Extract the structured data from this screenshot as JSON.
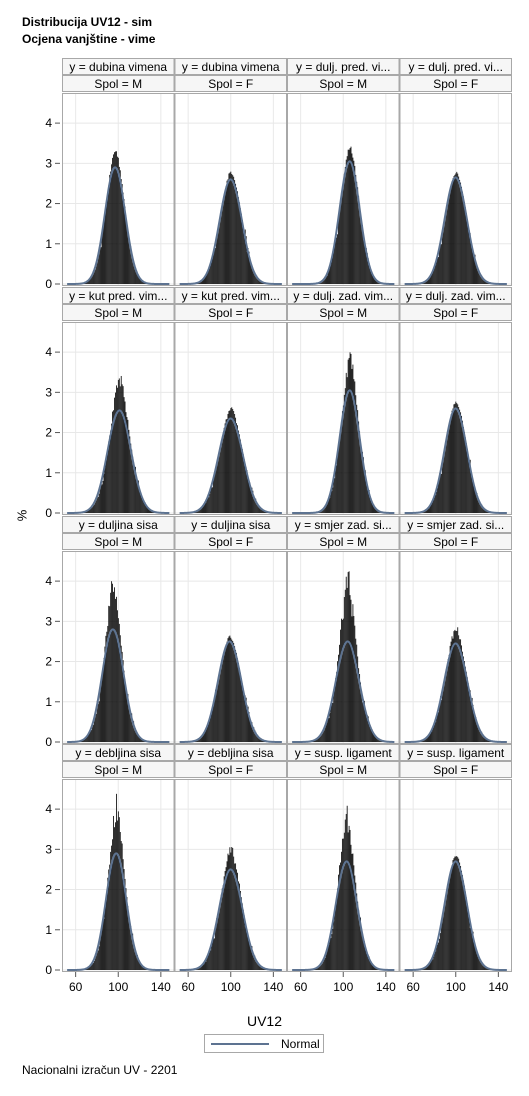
{
  "titles": {
    "line1": "Distribucija UV12 - sim",
    "line2": "Ocjena vanjštine - vime"
  },
  "footnote": "Nacionalni izračun UV - 2201",
  "chart_data": {
    "type": "histogram-panel",
    "xlabel": "UV12",
    "ylabel": "%",
    "xlim": [
      50,
      150
    ],
    "ylim": [
      0,
      4.5
    ],
    "x_ticks": [
      60,
      100,
      140
    ],
    "y_ticks": [
      0,
      1,
      2,
      3,
      4
    ],
    "grid": true,
    "legend": {
      "position": "bottom-center",
      "entries": [
        "Normal"
      ]
    },
    "colors": {
      "bars": "#000000",
      "normal_curve": "#5d7391",
      "header_bg": "#f6f6f6",
      "frame": "#a8a8a8",
      "grid": "#e8e8e8"
    },
    "columns": [
      "Spol = M",
      "Spol = F",
      "Spol = M",
      "Spol = F"
    ],
    "rows": [
      {
        "headers": [
          "y = dubina vimena",
          "y = dubina vimena",
          "y = dulj. pred. vi...",
          "y = dulj. pred. vi..."
        ],
        "panels": [
          {
            "spol": "M",
            "mean": 97,
            "sd": 9.5,
            "normal_peak": 2.9,
            "hist_peak": 3.45
          },
          {
            "spol": "F",
            "mean": 100,
            "sd": 10.5,
            "normal_peak": 2.6,
            "hist_peak": 2.85
          },
          {
            "spol": "M",
            "mean": 106,
            "sd": 9.5,
            "normal_peak": 3.05,
            "hist_peak": 3.5
          },
          {
            "spol": "F",
            "mean": 100,
            "sd": 10.5,
            "normal_peak": 2.65,
            "hist_peak": 2.8
          }
        ]
      },
      {
        "headers": [
          "y = kut pred. vim...",
          "y = kut pred. vim...",
          "y = dulj. zad. vim...",
          "y = dulj. zad. vim..."
        ],
        "panels": [
          {
            "spol": "M",
            "mean": 101,
            "sd": 11,
            "normal_peak": 2.55,
            "hist_peak": 3.55
          },
          {
            "spol": "F",
            "mean": 100,
            "sd": 11.5,
            "normal_peak": 2.35,
            "hist_peak": 2.65
          },
          {
            "spol": "M",
            "mean": 106,
            "sd": 9.5,
            "normal_peak": 3.05,
            "hist_peak": 4.15
          },
          {
            "spol": "F",
            "mean": 100,
            "sd": 10.5,
            "normal_peak": 2.6,
            "hist_peak": 2.8
          }
        ]
      },
      {
        "headers": [
          "y = duljina sisa",
          "y = duljina sisa",
          "y = smjer zad. si...",
          "y = smjer zad. si..."
        ],
        "panels": [
          {
            "spol": "M",
            "mean": 95,
            "sd": 10,
            "normal_peak": 2.8,
            "hist_peak": 4.25
          },
          {
            "spol": "F",
            "mean": 99,
            "sd": 11,
            "normal_peak": 2.5,
            "hist_peak": 2.65
          },
          {
            "spol": "M",
            "mean": 104,
            "sd": 11,
            "normal_peak": 2.5,
            "hist_peak": 4.55
          },
          {
            "spol": "F",
            "mean": 100,
            "sd": 11,
            "normal_peak": 2.45,
            "hist_peak": 2.95
          }
        ]
      },
      {
        "headers": [
          "y = debljina sisa",
          "y = debljina sisa",
          "y = susp. ligament",
          "y = susp. ligament"
        ],
        "panels": [
          {
            "spol": "M",
            "mean": 98,
            "sd": 9.5,
            "normal_peak": 2.9,
            "hist_peak": 4.45
          },
          {
            "spol": "F",
            "mean": 100,
            "sd": 11,
            "normal_peak": 2.5,
            "hist_peak": 3.15
          },
          {
            "spol": "M",
            "mean": 103,
            "sd": 10,
            "normal_peak": 2.7,
            "hist_peak": 4.2
          },
          {
            "spol": "F",
            "mean": 100,
            "sd": 10.5,
            "normal_peak": 2.7,
            "hist_peak": 2.9
          }
        ]
      }
    ]
  }
}
